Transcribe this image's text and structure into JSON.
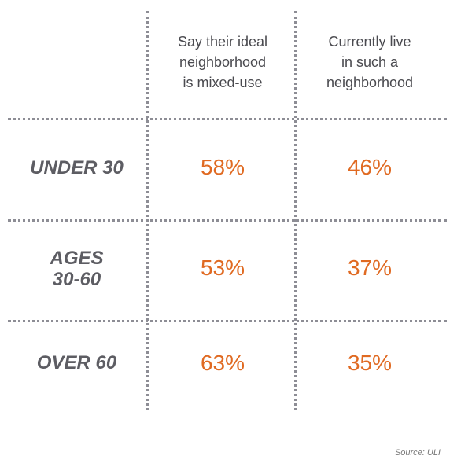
{
  "chart_data": {
    "type": "table",
    "columns": [
      "Say their ideal\nneighborhood\nis mixed-use",
      "Currently live\nin such a\nneighborhood"
    ],
    "rows": [
      {
        "label": "UNDER 30",
        "values": [
          "58%",
          "46%"
        ]
      },
      {
        "label": "AGES\n30-60",
        "values": [
          "53%",
          "37%"
        ]
      },
      {
        "label": "OVER 60",
        "values": [
          "63%",
          "35%"
        ]
      }
    ],
    "source": "Source: ULI",
    "colors": {
      "value": "#e06a22",
      "label": "#5d5d63",
      "grid": "#8d8d95"
    }
  }
}
